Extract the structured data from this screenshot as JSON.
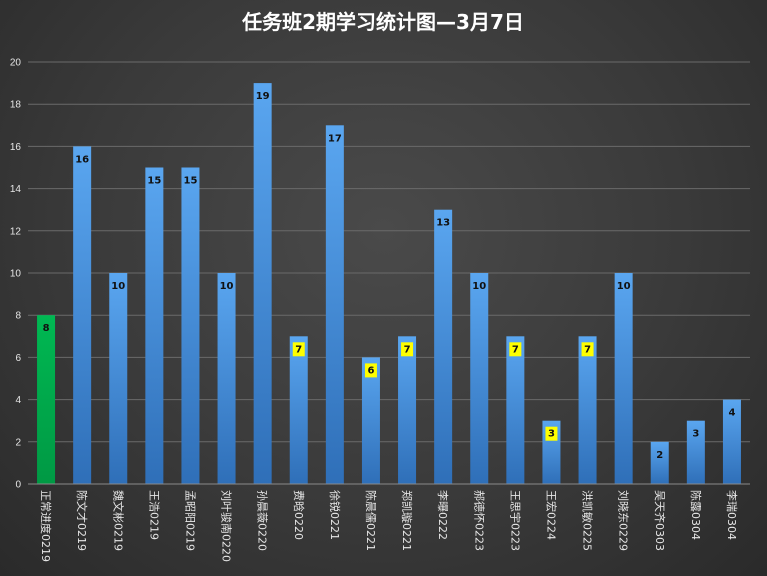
{
  "chart_data": {
    "type": "bar",
    "title": "任务班2期学习统计图—3月7日",
    "xlabel": "",
    "ylabel": "",
    "ylim": [
      0,
      20
    ],
    "yticks": [
      0,
      2,
      4,
      6,
      8,
      10,
      12,
      14,
      16,
      18,
      20
    ],
    "grid": true,
    "legend": "none",
    "categories": [
      "正常进度0219",
      "陈文才0219",
      "魏文彬0219",
      "王浩0219",
      "孟昭阳0219",
      "刘叶骏南0220",
      "孙晨薇0220",
      "费晗0220",
      "徐锐0221",
      "陈晨儒0221",
      "郑凯璇0221",
      "李曝0222",
      "郝德怀0223",
      "王思宇0223",
      "王宏0224",
      "洪凯敏0225",
      "刘晓东0229",
      "吴天齐0303",
      "陈露0304",
      "李瑞0304"
    ],
    "values": [
      8,
      16,
      10,
      15,
      15,
      10,
      19,
      7,
      17,
      6,
      7,
      13,
      10,
      7,
      3,
      7,
      10,
      2,
      3,
      4
    ],
    "highlight_labels": [
      7,
      9,
      10,
      13,
      14,
      15
    ],
    "colors": {
      "normal_bar": "#4f9be6",
      "reference_bar": "#00b050",
      "label_highlight": "#ffff00"
    }
  }
}
